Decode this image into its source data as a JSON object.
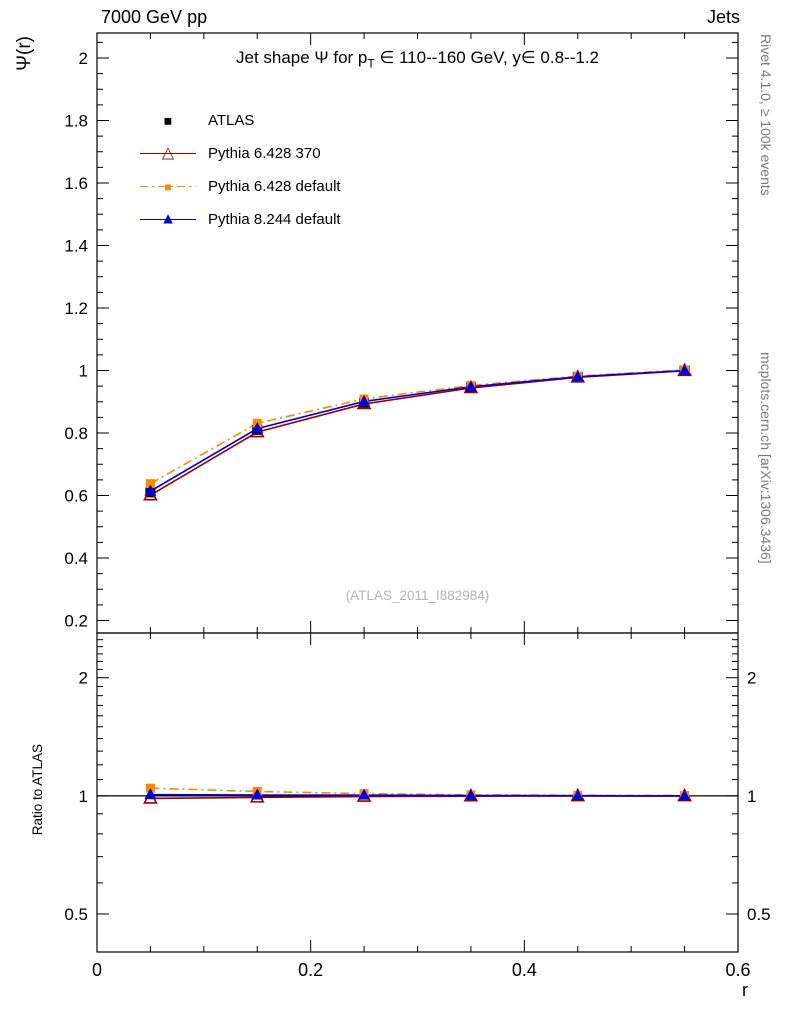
{
  "header": {
    "left": "7000 GeV pp",
    "right": "Jets"
  },
  "title": {
    "prefix": "Jet shape Ψ for p",
    "sub": "T",
    "suffix": " ∈ 110--160 GeV, y∈ 0.8--1.2"
  },
  "side_notes": {
    "top_right": "Rivet 4.1.0, ≥ 100k events",
    "bottom_right": "mcplots.cern.ch [arXiv:1306.3436]"
  },
  "chart_data": {
    "type": "line",
    "title": "Jet shape Ψ for pT ∈ 110--160 GeV, y∈ 0.8--1.2",
    "xlabel": "r",
    "main_ylabel": "Ψ(r)",
    "ratio_ylabel": "Ratio to ATLAS",
    "watermark": "(ATLAS_2011_I882984)",
    "x_range": [
      0,
      0.6
    ],
    "x": [
      0.05,
      0.15,
      0.25,
      0.35,
      0.45,
      0.55
    ],
    "x_ticks_major": [
      0,
      0.2,
      0.4,
      0.6
    ],
    "x_tick_labels": [
      "0",
      "0.2",
      "0.4",
      "0.6"
    ],
    "x_minor_step": 0.05,
    "main_y_scale": "linear",
    "main_y_range": [
      0.16,
      2.08
    ],
    "main_y_ticks": [
      0.2,
      0.4,
      0.6,
      0.8,
      1.0,
      1.2,
      1.4,
      1.6,
      1.8,
      2.0
    ],
    "main_y_tick_labels": [
      "0.2",
      "0.4",
      "0.6",
      "0.8",
      "1",
      "1.2",
      "1.4",
      "1.6",
      "1.8",
      "2"
    ],
    "main_y_minor_step": 0.05,
    "ratio_y_scale": "log",
    "ratio_y_range": [
      0.4,
      2.6
    ],
    "ratio_y_ticks_major": [
      0.5,
      1,
      2
    ],
    "ratio_y_tick_labels": [
      "0.5",
      "1",
      "2"
    ],
    "ratio_y_ticks_minor": [
      0.4,
      0.6,
      0.7,
      0.8,
      0.9,
      1.1,
      1.2,
      1.3,
      1.4,
      1.5,
      1.6,
      1.7,
      1.8,
      1.9,
      2.1,
      2.2,
      2.3,
      2.4,
      2.5
    ],
    "series": [
      {
        "name": "ATLAS",
        "color": "#000000",
        "marker": "square-filled",
        "glyph": "■",
        "line": "none",
        "values": [
          0.61,
          0.81,
          0.897,
          0.946,
          0.979,
          1.0
        ],
        "ratio": [
          1,
          1,
          1,
          1,
          1,
          1
        ]
      },
      {
        "name": "Pythia 6.428 370",
        "color": "#990000",
        "marker": "triangle-open",
        "glyph": "△",
        "line": "solid",
        "values": [
          0.601,
          0.803,
          0.893,
          0.944,
          0.978,
          0.999
        ],
        "ratio": [
          0.985,
          0.991,
          0.996,
          0.998,
          0.999,
          0.999
        ]
      },
      {
        "name": "Pythia 6.428 default",
        "color": "#ff8800",
        "marker": "square-filled",
        "glyph": "■",
        "line": "dashdot",
        "values": [
          0.638,
          0.831,
          0.909,
          0.952,
          0.982,
          1.002
        ],
        "ratio": [
          1.046,
          1.026,
          1.013,
          1.006,
          1.003,
          1.002
        ]
      },
      {
        "name": "Pythia 8.244 default",
        "color": "#0000dd",
        "marker": "triangle-filled",
        "glyph": "▲",
        "line": "solid",
        "values": [
          0.614,
          0.814,
          0.901,
          0.948,
          0.98,
          1.0
        ],
        "ratio": [
          1.007,
          1.005,
          1.004,
          1.002,
          1.001,
          1.0
        ]
      }
    ]
  }
}
